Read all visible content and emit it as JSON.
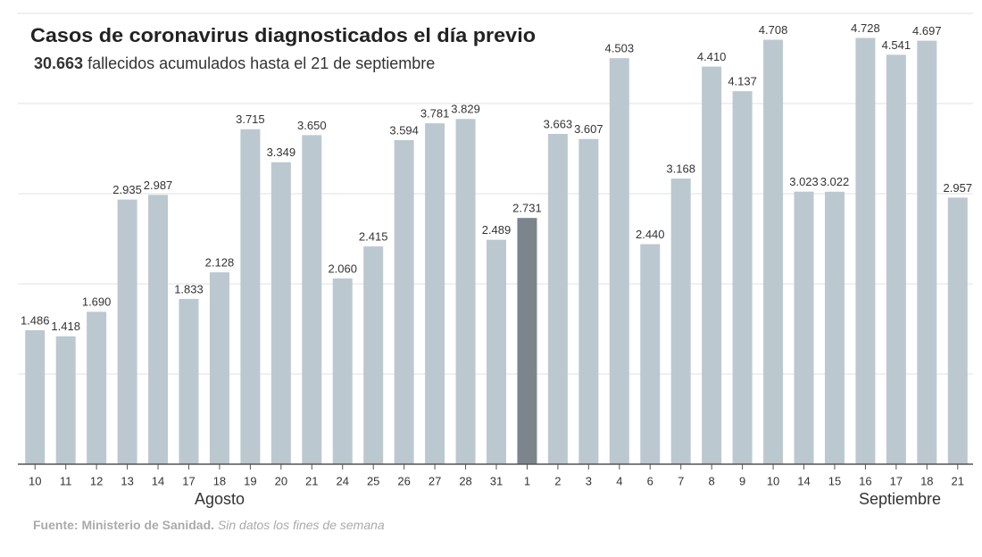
{
  "chart_data": {
    "type": "bar",
    "title": "Casos de coronavirus diagnosticados el día previo",
    "subtitle": {
      "highlight": "30.663",
      "text": "fallecidos acumulados hasta el 21 de septiembre"
    },
    "source": {
      "label": "Fuente: Ministerio de Sanidad.",
      "note": "Sin datos los fines de semana"
    },
    "x_groups": [
      "Agosto",
      "Septiembre"
    ],
    "categories": [
      "10",
      "11",
      "12",
      "13",
      "14",
      "17",
      "18",
      "19",
      "20",
      "21",
      "24",
      "25",
      "26",
      "27",
      "28",
      "31",
      "1",
      "2",
      "3",
      "4",
      "6",
      "7",
      "8",
      "9",
      "10",
      "14",
      "15",
      "16",
      "17",
      "18",
      "21"
    ],
    "values": [
      1486,
      1418,
      1690,
      2935,
      2987,
      1833,
      2128,
      3715,
      3349,
      3650,
      2060,
      2415,
      3594,
      3781,
      3829,
      2489,
      2731,
      3663,
      3607,
      4503,
      2440,
      3168,
      4410,
      4137,
      4708,
      3023,
      3022,
      4728,
      4541,
      4697,
      2957
    ],
    "value_labels": [
      "1.486",
      "1.418",
      "1.690",
      "2.935",
      "2.987",
      "1.833",
      "2.128",
      "3.715",
      "3.349",
      "3.650",
      "2.060",
      "2.415",
      "3.594",
      "3.781",
      "3.829",
      "2.489",
      "2.731",
      "3.663",
      "3.607",
      "4.503",
      "2.440",
      "3.168",
      "4.410",
      "4.137",
      "4.708",
      "3.023",
      "3.022",
      "4.728",
      "4.541",
      "4.697",
      "2.957"
    ],
    "colors": [
      "#bcc8d0",
      "#bcc8d0",
      "#bcc8d0",
      "#bcc8d0",
      "#bcc8d0",
      "#bcc8d0",
      "#bcc8d0",
      "#bcc8d0",
      "#bcc8d0",
      "#bcc8d0",
      "#bcc8d0",
      "#bcc8d0",
      "#bcc8d0",
      "#bcc8d0",
      "#bcc8d0",
      "#bcc8d0",
      "#7c858c",
      "#bcc8d0",
      "#bcc8d0",
      "#bcc8d0",
      "#bcc8d0",
      "#bcc8d0",
      "#bcc8d0",
      "#bcc8d0",
      "#bcc8d0",
      "#bcc8d0",
      "#bcc8d0",
      "#bcc8d0",
      "#bcc8d0",
      "#bcc8d0",
      "#bcc8d0"
    ],
    "ylim": [
      0,
      5000
    ],
    "yticks": [
      0,
      1000,
      2000,
      3000,
      4000,
      5000
    ],
    "grid": true
  }
}
